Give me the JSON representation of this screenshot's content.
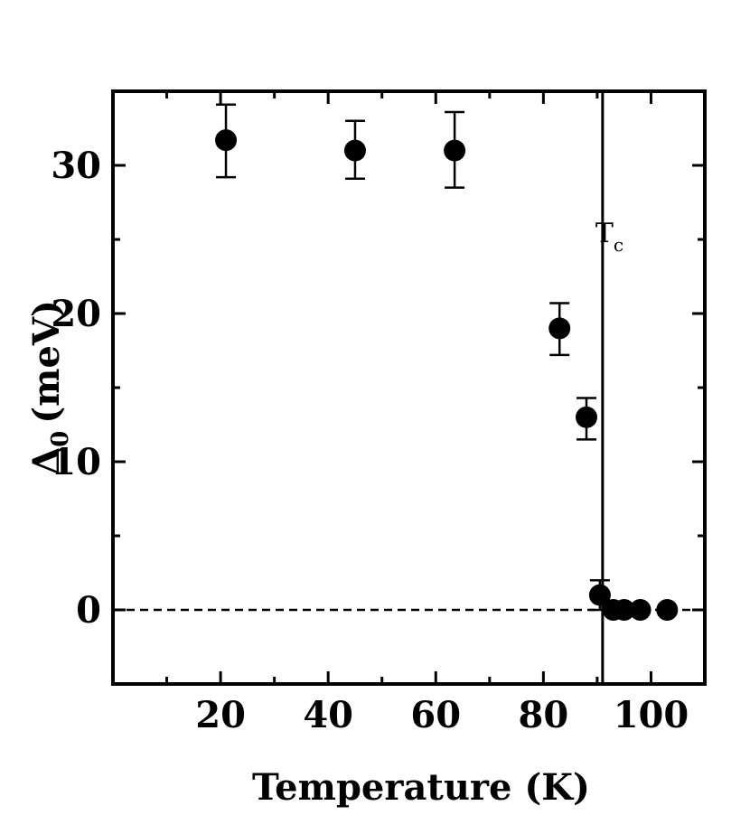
{
  "chart_data": {
    "type": "scatter",
    "xlabel": "Temperature (K)",
    "ylabel_main": "Δ",
    "ylabel_sub": "0",
    "ylabel_unit": "(meV)",
    "xlim": [
      0,
      110
    ],
    "ylim": [
      -5,
      35
    ],
    "xticks": [
      20,
      40,
      60,
      80,
      100
    ],
    "yticks": [
      0,
      10,
      20,
      30
    ],
    "grid": false,
    "annotation": {
      "text": "T",
      "sub": "c",
      "x": 91
    },
    "reference_line_y": 0,
    "vertical_line_x": 91,
    "series": [
      {
        "marker": "filled-circle",
        "x": [
          21,
          45,
          63.5,
          83,
          88,
          90.5,
          93,
          95,
          98,
          103
        ],
        "y": [
          31.7,
          31,
          31,
          19,
          13,
          1,
          0,
          0,
          0,
          0
        ],
        "yerr_low": [
          29.2,
          29.1,
          28.5,
          17.2,
          11.5,
          0,
          0,
          0,
          0,
          0
        ],
        "yerr_high": [
          34.1,
          33,
          33.6,
          20.7,
          14.3,
          2,
          0,
          0,
          0,
          0
        ]
      }
    ]
  }
}
